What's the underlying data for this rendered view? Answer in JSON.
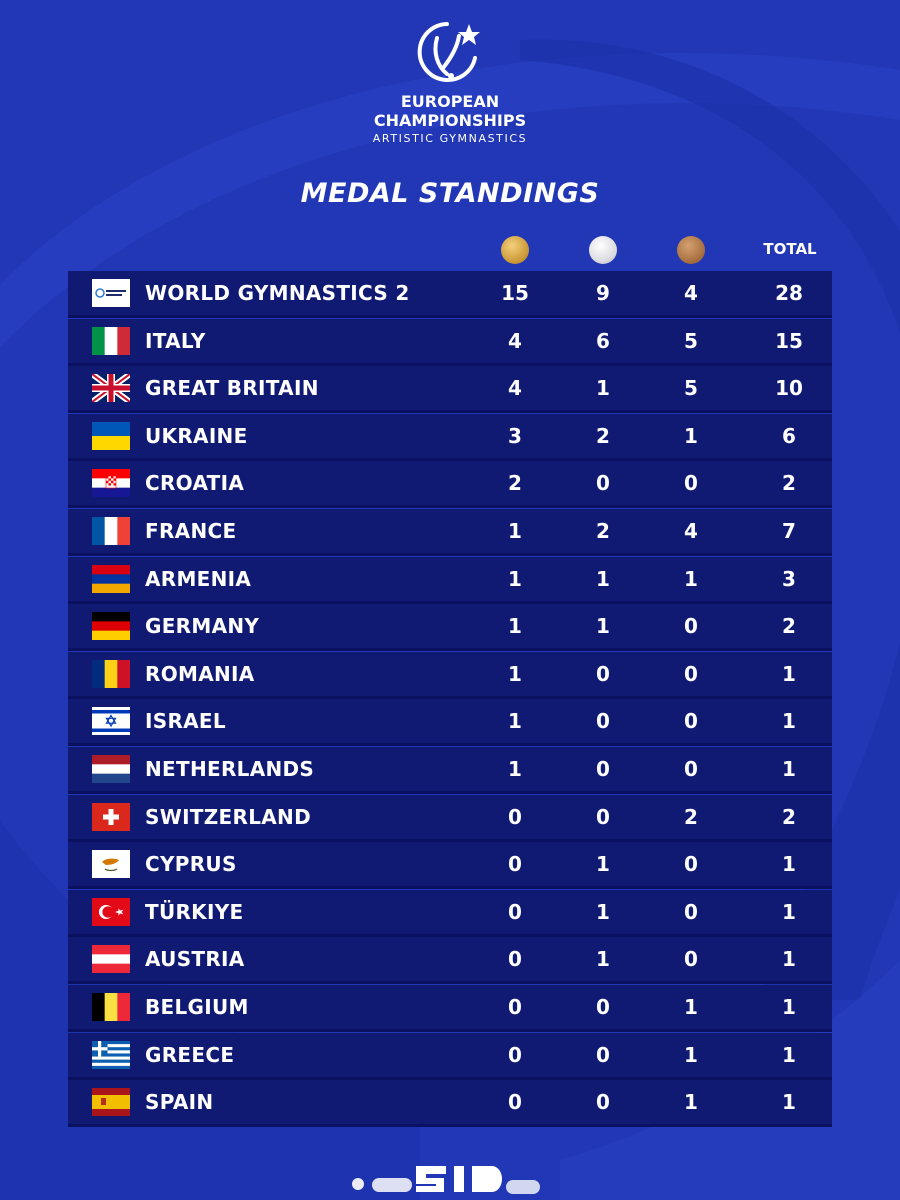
{
  "event": {
    "line1": "EUROPEAN",
    "line2": "CHAMPIONSHIPS",
    "line3": "ARTISTIC GYMNASTICS",
    "logo_icon": "gymnast-star-logo-icon"
  },
  "title": "MEDAL STANDINGS",
  "columns": {
    "gold_icon": "gold-medal-icon",
    "silver_icon": "silver-medal-icon",
    "bronze_icon": "bronze-medal-icon",
    "total": "TOTAL"
  },
  "standings": [
    {
      "name": "WORLD GYMNASTICS 2",
      "flag": "fig",
      "gold": "15",
      "silver": "9",
      "bronze": "4",
      "total": "28"
    },
    {
      "name": "ITALY",
      "flag": "it",
      "gold": "4",
      "silver": "6",
      "bronze": "5",
      "total": "15"
    },
    {
      "name": "GREAT BRITAIN",
      "flag": "gb",
      "gold": "4",
      "silver": "1",
      "bronze": "5",
      "total": "10"
    },
    {
      "name": "UKRAINE",
      "flag": "ua",
      "gold": "3",
      "silver": "2",
      "bronze": "1",
      "total": "6"
    },
    {
      "name": "CROATIA",
      "flag": "hr",
      "gold": "2",
      "silver": "0",
      "bronze": "0",
      "total": "2"
    },
    {
      "name": "FRANCE",
      "flag": "fr",
      "gold": "1",
      "silver": "2",
      "bronze": "4",
      "total": "7"
    },
    {
      "name": "ARMENIA",
      "flag": "am",
      "gold": "1",
      "silver": "1",
      "bronze": "1",
      "total": "3"
    },
    {
      "name": "GERMANY",
      "flag": "de",
      "gold": "1",
      "silver": "1",
      "bronze": "0",
      "total": "2"
    },
    {
      "name": "ROMANIA",
      "flag": "ro",
      "gold": "1",
      "silver": "0",
      "bronze": "0",
      "total": "1"
    },
    {
      "name": "ISRAEL",
      "flag": "il",
      "gold": "1",
      "silver": "0",
      "bronze": "0",
      "total": "1"
    },
    {
      "name": "NETHERLANDS",
      "flag": "nl",
      "gold": "1",
      "silver": "0",
      "bronze": "0",
      "total": "1"
    },
    {
      "name": "SWITZERLAND",
      "flag": "ch",
      "gold": "0",
      "silver": "0",
      "bronze": "2",
      "total": "2"
    },
    {
      "name": "CYPRUS",
      "flag": "cy",
      "gold": "0",
      "silver": "1",
      "bronze": "0",
      "total": "1"
    },
    {
      "name": "TÜRKIYE",
      "flag": "tr",
      "gold": "0",
      "silver": "1",
      "bronze": "0",
      "total": "1"
    },
    {
      "name": "AUSTRIA",
      "flag": "at",
      "gold": "0",
      "silver": "1",
      "bronze": "0",
      "total": "1"
    },
    {
      "name": "BELGIUM",
      "flag": "be",
      "gold": "0",
      "silver": "0",
      "bronze": "1",
      "total": "1"
    },
    {
      "name": "GREECE",
      "flag": "gr",
      "gold": "0",
      "silver": "0",
      "bronze": "1",
      "total": "1"
    },
    {
      "name": "SPAIN",
      "flag": "es",
      "gold": "0",
      "silver": "0",
      "bronze": "1",
      "total": "1"
    }
  ],
  "colors": {
    "background": "#2137b6",
    "row_background": "#111a73",
    "gold": "#c99532",
    "silver": "#d9d9df",
    "bronze": "#a46c3e"
  },
  "footer": {
    "icon": "partial-watermark-logo-icon"
  }
}
